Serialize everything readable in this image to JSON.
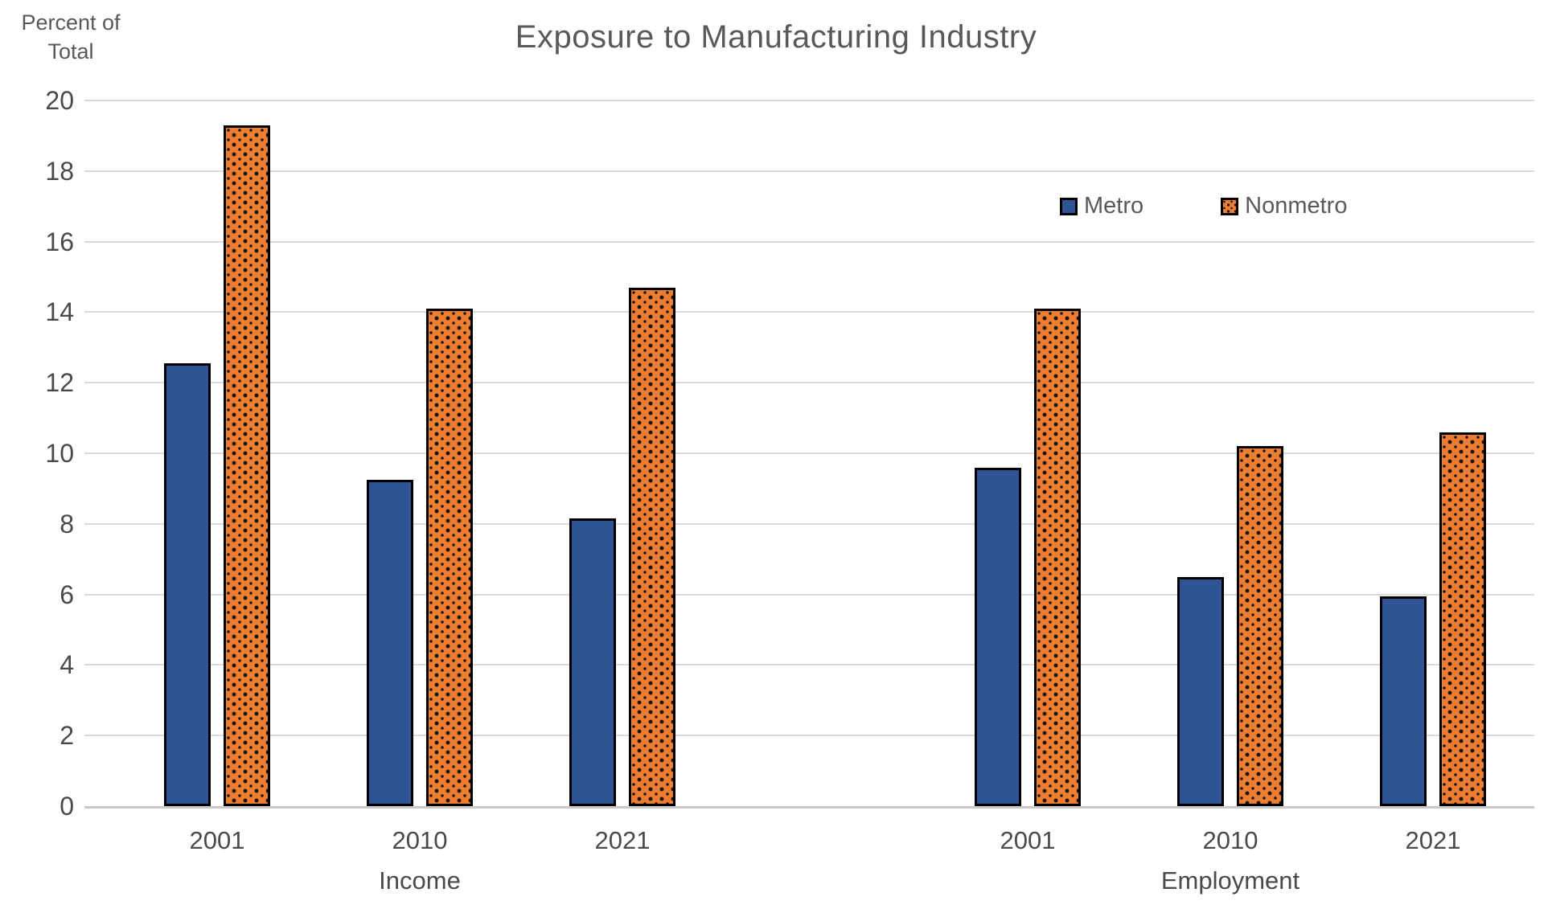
{
  "header": {
    "title": "Exposure to Manufacturing Industry",
    "y_axis_label_line1": "Percent of",
    "y_axis_label_line2": "Total"
  },
  "legend": [
    {
      "name": "Metro",
      "color": "#2F5496",
      "pattern": "solid"
    },
    {
      "name": "Nonmetro",
      "color": "#ED7D31",
      "pattern": "dots"
    }
  ],
  "chart_data": {
    "type": "bar",
    "title": "Exposure to Manufacturing Industry",
    "ylabel": "Percent of Total",
    "xlabel": "",
    "ylim": [
      0,
      20
    ],
    "ytick_step": 2,
    "grid": true,
    "legend_position": "inside-upper-right",
    "units": "percent",
    "groups": [
      {
        "label": "Income",
        "categories": [
          "2001",
          "2010",
          "2021"
        ],
        "series": [
          {
            "name": "Metro",
            "values": [
              12.55,
              9.25,
              8.15
            ]
          },
          {
            "name": "Nonmetro",
            "values": [
              19.3,
              14.1,
              14.7
            ]
          }
        ]
      },
      {
        "label": "Employment",
        "categories": [
          "2001",
          "2010",
          "2021"
        ],
        "series": [
          {
            "name": "Metro",
            "values": [
              9.6,
              6.5,
              5.95
            ]
          },
          {
            "name": "Nonmetro",
            "values": [
              14.1,
              10.2,
              10.6
            ]
          }
        ]
      }
    ],
    "colors": {
      "metro_fill": "#2F5496",
      "nonmetro_fill": "#ED7D31",
      "bar_border": "#000000",
      "gridline": "#DADADA",
      "axis_line": "#C9C9C9",
      "text": "#595959"
    }
  }
}
